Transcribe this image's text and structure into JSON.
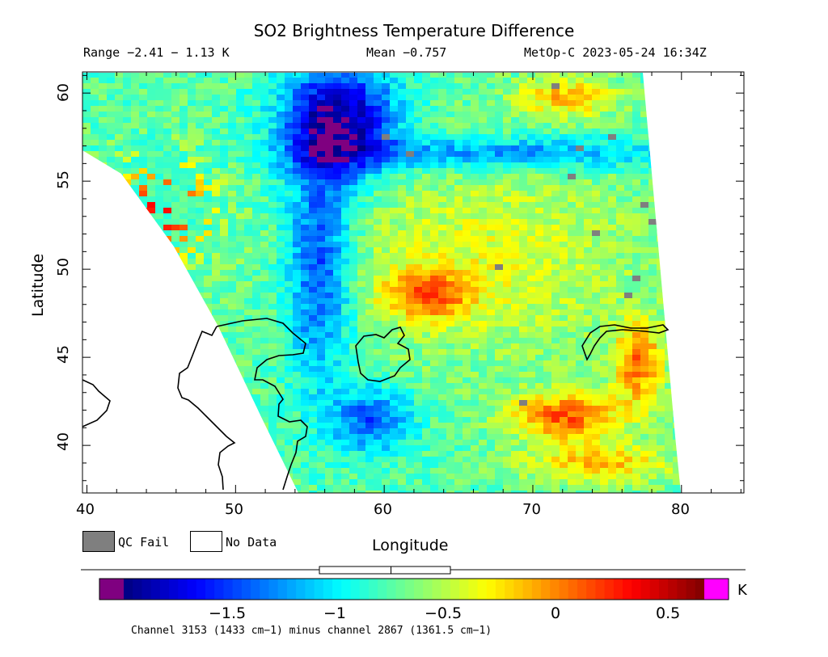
{
  "header": {
    "title": "SO2 Brightness Temperature Difference",
    "range": "Range −2.41 − 1.13 K",
    "mean": "Mean −0.757",
    "satellite_time": "MetOp-C 2023-05-24 16:34Z"
  },
  "map": {
    "xlabel": "Longitude",
    "ylabel": "Latitude",
    "lon_range": [
      39.7,
      84.2
    ],
    "lat_range": [
      37.3,
      61.2
    ],
    "x_ticks": [
      "40",
      "50",
      "60",
      "70",
      "80"
    ],
    "x_tick_values": [
      40,
      50,
      60,
      70,
      80
    ],
    "y_ticks": [
      "40",
      "45",
      "50",
      "55",
      "60"
    ],
    "y_tick_values": [
      40,
      45,
      50,
      55,
      60
    ],
    "no_data_color": "#ffffff",
    "qc_fail_color": "#7f7f7f",
    "coastline_color": "#000000"
  },
  "legend": {
    "qc_fail": "QC Fail",
    "no_data": "No Data"
  },
  "colorbar": {
    "unit": "K",
    "min": -2.0,
    "max": 0.7,
    "tick_labels": [
      "−1.5",
      "−1",
      "−0.5",
      "0",
      "0.5"
    ],
    "tick_values": [
      -1.5,
      -1.0,
      -0.5,
      0.0,
      0.5
    ],
    "below_range_color": "#7f0080",
    "above_range_color": "#ff00ff",
    "mean_value": -0.757,
    "caption": "Channel 3153 (1433 cm−1) minus channel 2867 (1361.5 cm−1)"
  }
}
